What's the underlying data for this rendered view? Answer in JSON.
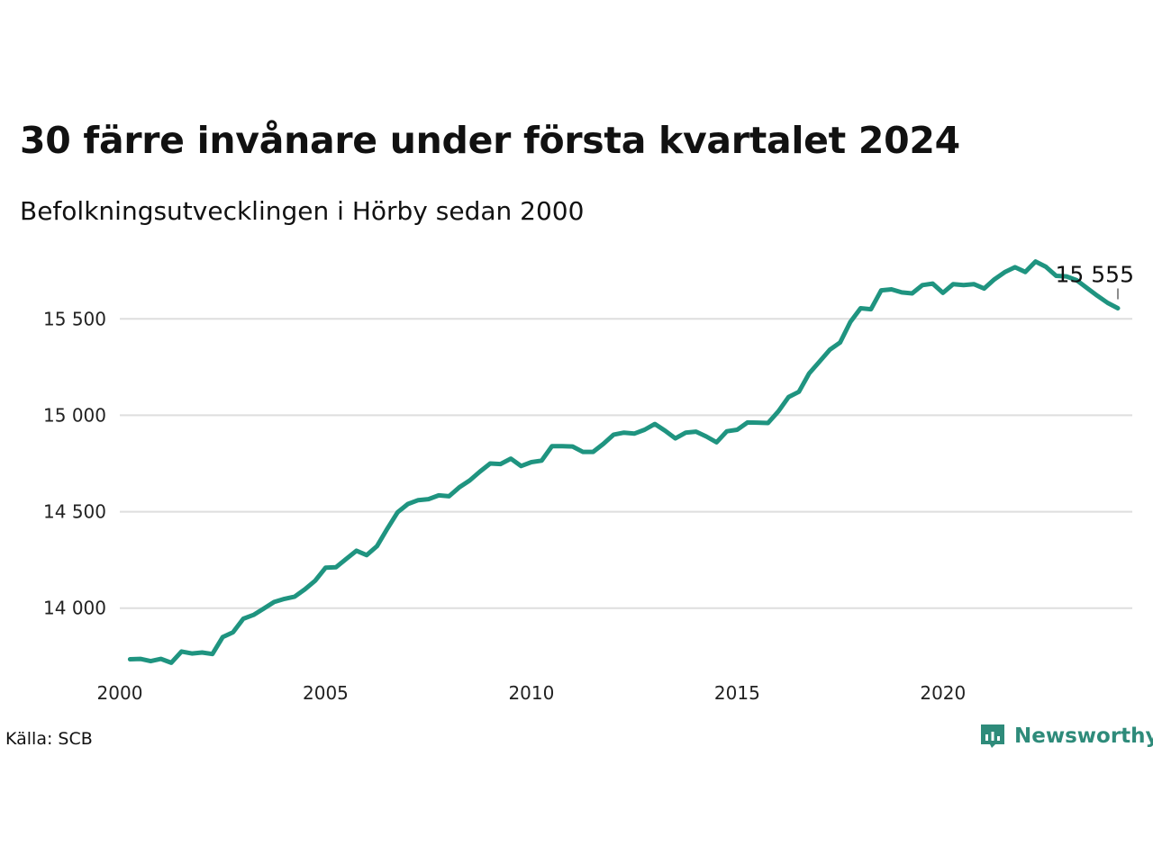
{
  "title": "30 färre invånare under första kvartalet 2024",
  "subtitle": "Befolkningsutvecklingen i Hörby sedan 2000",
  "source": "Källa: SCB",
  "brand": {
    "name": "Newsworthy",
    "color": "#2e8b7a",
    "icon": "newsworthy-logo-icon"
  },
  "chart_data": {
    "type": "line",
    "line_color": "#1f9480",
    "grid": true,
    "x_ticks": [
      2000,
      2005,
      2010,
      2015,
      2020
    ],
    "x_tick_labels": [
      "2000",
      "2005",
      "2010",
      "2015",
      "2020"
    ],
    "y_ticks": [
      14000,
      14500,
      15000,
      15500
    ],
    "y_tick_labels": [
      "14 000",
      "14 500",
      "15 000",
      "15 500"
    ],
    "xlim": [
      2000,
      2024.6
    ],
    "ylim": [
      13700,
      15800
    ],
    "last_label": "15 555",
    "series": [
      {
        "x": [
          2000.25,
          2000.5,
          2000.75,
          2001.0,
          2001.25,
          2001.5,
          2001.75,
          2002.0,
          2002.25,
          2002.5,
          2002.75,
          2003.0,
          2003.25,
          2003.5,
          2003.75,
          2004.0,
          2004.25,
          2004.5,
          2004.75,
          2005.0,
          2005.25,
          2005.5,
          2005.75,
          2006.0,
          2006.25,
          2006.5,
          2006.75,
          2007.0,
          2007.25,
          2007.5,
          2007.75,
          2008.0,
          2008.25,
          2008.5,
          2008.75,
          2009.0,
          2009.25,
          2009.5,
          2009.75,
          2010.0,
          2010.25,
          2010.5,
          2010.75,
          2011.0,
          2011.25,
          2011.5,
          2011.75,
          2012.0,
          2012.25,
          2012.5,
          2012.75,
          2013.0,
          2013.25,
          2013.5,
          2013.75,
          2014.0,
          2014.25,
          2014.5,
          2014.75,
          2015.0,
          2015.25,
          2015.5,
          2015.75,
          2016.0,
          2016.25,
          2016.5,
          2016.75,
          2017.0,
          2017.25,
          2017.5,
          2017.75,
          2018.0,
          2018.25,
          2018.5,
          2018.75,
          2019.0,
          2019.25,
          2019.5,
          2019.75,
          2020.0,
          2020.25,
          2020.5,
          2020.75,
          2021.0,
          2021.25,
          2021.5,
          2021.75,
          2022.0,
          2022.25,
          2022.5,
          2022.75,
          2023.0,
          2023.25,
          2023.5,
          2023.75,
          2024.0,
          2024.25
        ],
        "y": [
          13735,
          13737,
          13725,
          13737,
          13717,
          13775,
          13765,
          13770,
          13762,
          13850,
          13875,
          13945,
          13965,
          13998,
          14032,
          14048,
          14060,
          14098,
          14143,
          14210,
          14212,
          14255,
          14298,
          14275,
          14322,
          14412,
          14497,
          14540,
          14560,
          14565,
          14585,
          14580,
          14627,
          14662,
          14708,
          14750,
          14747,
          14775,
          14737,
          14757,
          14765,
          14840,
          14840,
          14838,
          14810,
          14810,
          14852,
          14900,
          14910,
          14905,
          14925,
          14955,
          14920,
          14880,
          14910,
          14915,
          14890,
          14860,
          14917,
          14925,
          14963,
          14962,
          14960,
          15020,
          15095,
          15122,
          15217,
          15278,
          15340,
          15377,
          15484,
          15555,
          15550,
          15648,
          15653,
          15637,
          15632,
          15675,
          15683,
          15635,
          15680,
          15675,
          15680,
          15657,
          15705,
          15742,
          15768,
          15743,
          15797,
          15770,
          15723,
          15720,
          15700,
          15660,
          15620,
          15583,
          15555
        ]
      }
    ]
  }
}
